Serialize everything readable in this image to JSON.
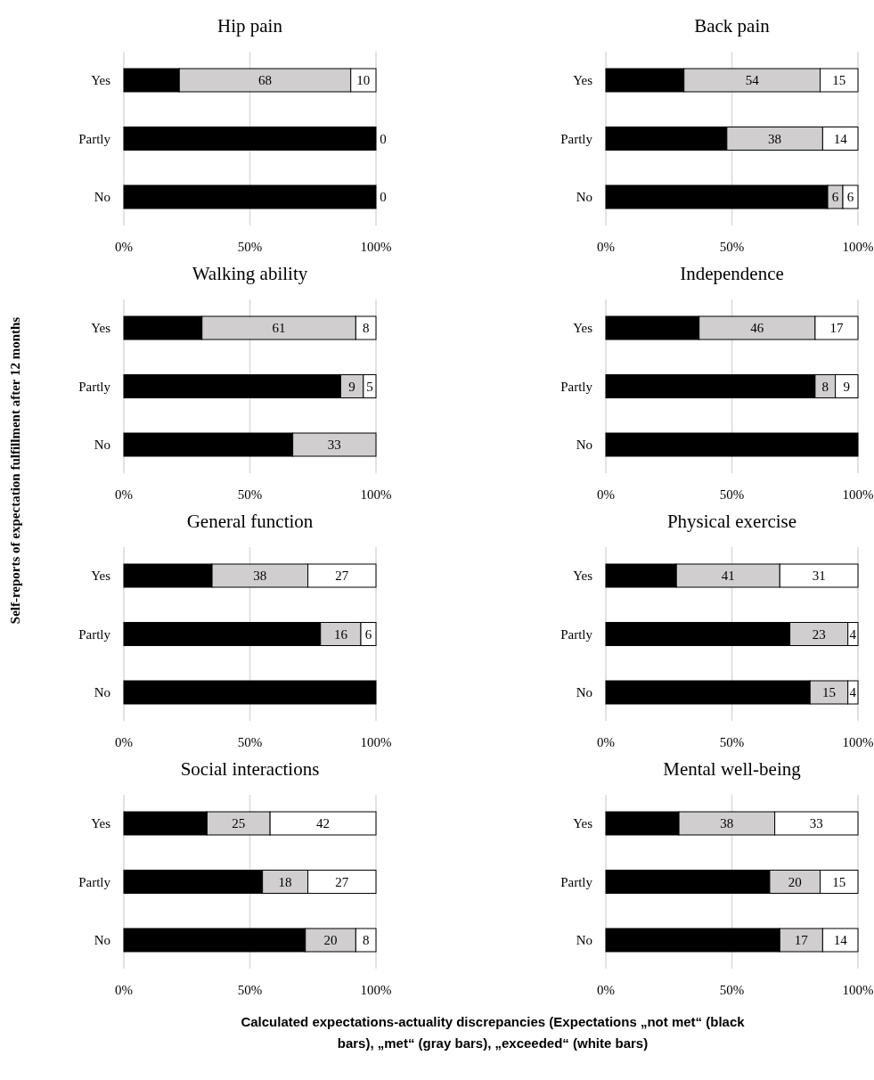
{
  "chart_data": [
    {
      "type": "bar",
      "orientation": "horizontal",
      "stacked": true,
      "title": "Hip pain",
      "xlabel": "Calculated expectations-actuality discrepancies (Expectations „not met“ (black bars), „met“ (gray bars), „exceeded“ (white bars)",
      "categories": [
        "Yes",
        "Partly",
        "No"
      ],
      "xlim": [
        0,
        100
      ],
      "xticks": [
        {
          "value": 0,
          "label": "0%"
        },
        {
          "value": 50,
          "label": "50%"
        },
        {
          "value": 100,
          "label": "100%"
        }
      ],
      "grid": "x",
      "series": [
        {
          "color": "#000000",
          "values": [
            22,
            100,
            100
          ]
        },
        {
          "color": "#d0cece",
          "values": [
            68,
            0,
            0
          ],
          "value_labels": [
            "68",
            null,
            null
          ]
        },
        {
          "color": "#ffffff",
          "values": [
            10,
            0,
            0
          ],
          "value_labels": [
            "10",
            "0",
            "0"
          ]
        }
      ]
    },
    {
      "type": "bar",
      "orientation": "horizontal",
      "stacked": true,
      "title": "Back pain",
      "categories": [
        "Yes",
        "Partly",
        "No"
      ],
      "xlim": [
        0,
        100
      ],
      "xticks": [
        {
          "value": 0,
          "label": "0%"
        },
        {
          "value": 50,
          "label": "50%"
        },
        {
          "value": 100,
          "label": "100%"
        }
      ],
      "grid": "x",
      "series": [
        {
          "color": "#000000",
          "values": [
            31,
            48,
            88
          ]
        },
        {
          "color": "#d0cece",
          "values": [
            54,
            38,
            6
          ],
          "value_labels": [
            "54",
            "38",
            "6"
          ]
        },
        {
          "color": "#ffffff",
          "values": [
            15,
            14,
            6
          ],
          "value_labels": [
            "15",
            "14",
            "6"
          ]
        }
      ]
    },
    {
      "type": "bar",
      "orientation": "horizontal",
      "stacked": true,
      "title": "Walking ability",
      "ylabel": "Self-reports of expectation fulfillment after 12 months",
      "categories": [
        "Yes",
        "Partly",
        "No"
      ],
      "xlim": [
        0,
        100
      ],
      "xticks": [
        {
          "value": 0,
          "label": "0%"
        },
        {
          "value": 50,
          "label": "50%"
        },
        {
          "value": 100,
          "label": "100%"
        }
      ],
      "grid": "x",
      "series": [
        {
          "color": "#000000",
          "values": [
            31,
            86,
            67
          ]
        },
        {
          "color": "#d0cece",
          "values": [
            61,
            9,
            33
          ],
          "value_labels": [
            "61",
            "9",
            "33"
          ]
        },
        {
          "color": "#ffffff",
          "values": [
            8,
            5,
            0
          ],
          "value_labels": [
            "8",
            "5",
            null
          ]
        }
      ]
    },
    {
      "type": "bar",
      "orientation": "horizontal",
      "stacked": true,
      "title": "Independence",
      "categories": [
        "Yes",
        "Partly",
        "No"
      ],
      "xlim": [
        0,
        100
      ],
      "xticks": [
        {
          "value": 0,
          "label": "0%"
        },
        {
          "value": 50,
          "label": "50%"
        },
        {
          "value": 100,
          "label": "100%"
        }
      ],
      "grid": "x",
      "series": [
        {
          "color": "#000000",
          "values": [
            37,
            83,
            100
          ]
        },
        {
          "color": "#d0cece",
          "values": [
            46,
            8,
            0
          ],
          "value_labels": [
            "46",
            "8",
            null
          ]
        },
        {
          "color": "#ffffff",
          "values": [
            17,
            9,
            0
          ],
          "value_labels": [
            "17",
            "9",
            null
          ]
        }
      ]
    },
    {
      "type": "bar",
      "orientation": "horizontal",
      "stacked": true,
      "title": "General function",
      "categories": [
        "Yes",
        "Partly",
        "No"
      ],
      "xlim": [
        0,
        100
      ],
      "xticks": [
        {
          "value": 0,
          "label": "0%"
        },
        {
          "value": 50,
          "label": "50%"
        },
        {
          "value": 100,
          "label": "100%"
        }
      ],
      "grid": "x",
      "series": [
        {
          "color": "#000000",
          "values": [
            35,
            78,
            100
          ]
        },
        {
          "color": "#d0cece",
          "values": [
            38,
            16,
            0
          ],
          "value_labels": [
            "38",
            "16",
            null
          ]
        },
        {
          "color": "#ffffff",
          "values": [
            27,
            6,
            0
          ],
          "value_labels": [
            "27",
            "6",
            null
          ]
        }
      ]
    },
    {
      "type": "bar",
      "orientation": "horizontal",
      "stacked": true,
      "title": "Physical exercise",
      "categories": [
        "Yes",
        "Partly",
        "No"
      ],
      "xlim": [
        0,
        100
      ],
      "xticks": [
        {
          "value": 0,
          "label": "0%"
        },
        {
          "value": 50,
          "label": "50%"
        },
        {
          "value": 100,
          "label": "100%"
        }
      ],
      "grid": "x",
      "series": [
        {
          "color": "#000000",
          "values": [
            28,
            73,
            81
          ]
        },
        {
          "color": "#d0cece",
          "values": [
            41,
            23,
            15
          ],
          "value_labels": [
            "41",
            "23",
            "15"
          ]
        },
        {
          "color": "#ffffff",
          "values": [
            31,
            4,
            4
          ],
          "value_labels": [
            "31",
            "4",
            "4"
          ]
        }
      ]
    },
    {
      "type": "bar",
      "orientation": "horizontal",
      "stacked": true,
      "title": "Social interactions",
      "categories": [
        "Yes",
        "Partly",
        "No"
      ],
      "xlim": [
        0,
        100
      ],
      "xticks": [
        {
          "value": 0,
          "label": "0%"
        },
        {
          "value": 50,
          "label": "50%"
        },
        {
          "value": 100,
          "label": "100%"
        }
      ],
      "grid": "x",
      "series": [
        {
          "color": "#000000",
          "values": [
            33,
            55,
            72
          ]
        },
        {
          "color": "#d0cece",
          "values": [
            25,
            18,
            20
          ],
          "value_labels": [
            "25",
            "18",
            "20"
          ]
        },
        {
          "color": "#ffffff",
          "values": [
            42,
            27,
            8
          ],
          "value_labels": [
            "42",
            "27",
            "8"
          ]
        }
      ]
    },
    {
      "type": "bar",
      "orientation": "horizontal",
      "stacked": true,
      "title": "Mental well-being",
      "categories": [
        "Yes",
        "Partly",
        "No"
      ],
      "xlim": [
        0,
        100
      ],
      "xticks": [
        {
          "value": 0,
          "label": "0%"
        },
        {
          "value": 50,
          "label": "50%"
        },
        {
          "value": 100,
          "label": "100%"
        }
      ],
      "grid": "x",
      "series": [
        {
          "color": "#000000",
          "values": [
            29,
            65,
            69
          ]
        },
        {
          "color": "#d0cece",
          "values": [
            38,
            20,
            17
          ],
          "value_labels": [
            "38",
            "20",
            "17"
          ]
        },
        {
          "color": "#ffffff",
          "values": [
            33,
            15,
            14
          ],
          "value_labels": [
            "33",
            "15",
            "14"
          ]
        }
      ]
    }
  ]
}
